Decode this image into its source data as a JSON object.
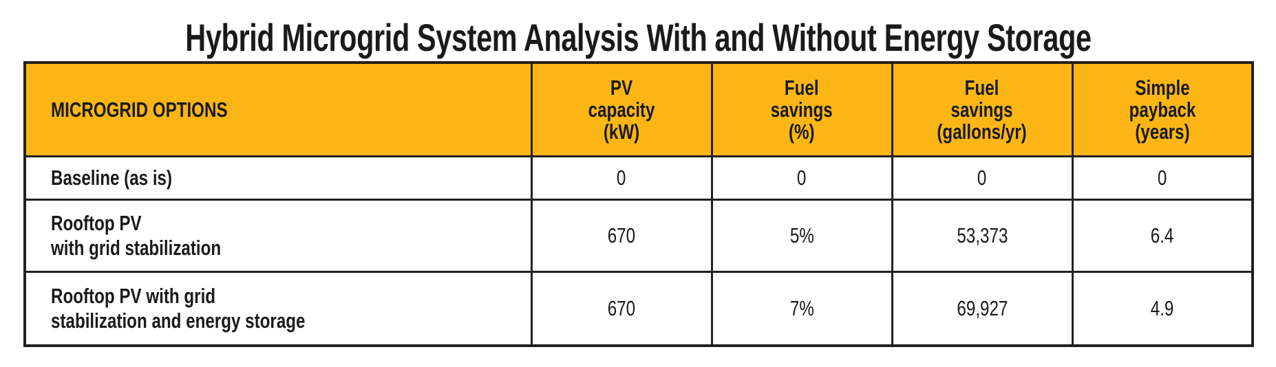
{
  "title": "Hybrid Microgrid System Analysis With and Without Energy Storage",
  "header": {
    "options": "MICROGRID OPTIONS",
    "pv_capacity": [
      "PV",
      "capacity",
      "(kW)"
    ],
    "fuel_savings_pct": [
      "Fuel",
      "savings",
      "(%)"
    ],
    "fuel_savings_gal": [
      "Fuel",
      "savings",
      "(gallons/yr)"
    ],
    "payback": [
      "Simple",
      "payback",
      "(years)"
    ]
  },
  "rows": [
    {
      "option": [
        "Baseline (as is)"
      ],
      "pv": "0",
      "pct": "0",
      "gal": "0",
      "payback": "0"
    },
    {
      "option": [
        "Rooftop PV",
        "with grid stabilization"
      ],
      "pv": "670",
      "pct": "5%",
      "gal": "53,373",
      "payback": "6.4"
    },
    {
      "option": [
        "Rooftop PV with grid",
        "stabilization and energy storage"
      ],
      "pv": "670",
      "pct": "7%",
      "gal": "69,927",
      "payback": "4.9"
    }
  ],
  "colors": {
    "header_bg": "#fbb616",
    "border": "#231f20"
  }
}
